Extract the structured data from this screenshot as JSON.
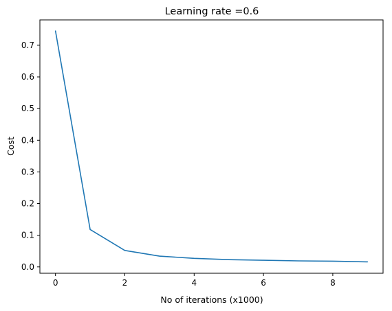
{
  "chart_data": {
    "type": "line",
    "title": "Learning rate =0.6",
    "xlabel": "No of iterations (x1000)",
    "ylabel": "Cost",
    "xlim": [
      -0.45,
      9.45
    ],
    "ylim": [
      -0.02,
      0.78
    ],
    "x_ticks": [
      0,
      2,
      4,
      6,
      8
    ],
    "x_tick_labels": [
      "0",
      "2",
      "4",
      "6",
      "8"
    ],
    "y_ticks": [
      0.0,
      0.1,
      0.2,
      0.3,
      0.4,
      0.5,
      0.6,
      0.7
    ],
    "y_tick_labels": [
      "0.0",
      "0.1",
      "0.2",
      "0.3",
      "0.4",
      "0.5",
      "0.6",
      "0.7"
    ],
    "grid": false,
    "series": [
      {
        "color": "#1f77b4",
        "x": [
          0,
          1,
          2,
          3,
          4,
          5,
          6,
          7,
          8,
          9
        ],
        "values": [
          0.745,
          0.118,
          0.052,
          0.034,
          0.027,
          0.023,
          0.021,
          0.019,
          0.018,
          0.016
        ]
      }
    ]
  }
}
